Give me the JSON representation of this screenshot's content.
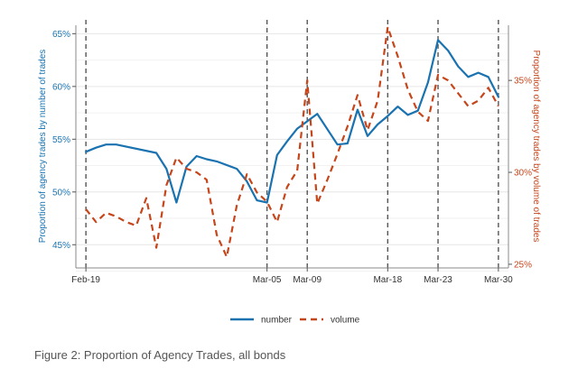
{
  "chart_data": {
    "type": "line",
    "x_categories": [
      "Feb-19",
      "Mar-05",
      "Mar-09",
      "Mar-18",
      "Mar-23",
      "Mar-30"
    ],
    "event_lines": [
      "Feb-19",
      "Mar-05",
      "Mar-09",
      "Mar-18",
      "Mar-23",
      "Mar-30"
    ],
    "ylabel_left": "Proportion of agency trades by number of trades",
    "ylabel_right": "Proportion of agency trades by volume of trades",
    "y_left_ticks": [
      "45%",
      "50%",
      "55%",
      "60%",
      "65%"
    ],
    "y_right_ticks": [
      "25%",
      "30%",
      "35%"
    ],
    "y_left_range": [
      42.8,
      65.8
    ],
    "y_right_range": [
      24.8,
      38.0
    ],
    "x_range": [
      -1,
      42
    ],
    "colors": {
      "number": "#1a73b0",
      "volume": "#c6461c"
    },
    "legend_position": "bottom",
    "series": [
      {
        "name": "number",
        "axis": "left",
        "x": [
          0,
          1,
          2,
          3,
          7,
          8,
          9,
          10,
          11,
          12,
          13,
          15,
          16,
          17,
          18,
          19,
          20,
          21,
          23,
          25,
          26,
          27,
          28,
          29,
          30,
          31,
          32,
          33,
          34,
          35,
          36,
          37,
          38,
          39,
          40,
          41
        ],
        "y": [
          53.8,
          54.2,
          54.5,
          54.5,
          53.7,
          52.2,
          49.0,
          52.4,
          53.4,
          53.1,
          52.9,
          52.2,
          51.0,
          49.2,
          49.0,
          53.5,
          54.8,
          56.0,
          57.4,
          54.5,
          54.6,
          57.8,
          55.3,
          56.4,
          57.2,
          58.1,
          57.3,
          57.7,
          60.4,
          64.4,
          63.4,
          61.9,
          60.9,
          61.3,
          60.9,
          59.0
        ]
      },
      {
        "name": "volume",
        "axis": "right",
        "x": [
          0,
          1,
          2,
          3,
          4,
          5,
          6,
          7,
          8,
          9,
          10,
          11,
          12,
          13,
          14,
          15,
          16,
          17,
          18,
          19,
          20,
          21,
          22,
          23,
          24,
          25,
          26,
          27,
          28,
          29,
          30,
          31,
          32,
          33,
          34,
          35,
          36,
          37,
          38,
          39,
          40,
          41
        ],
        "y": [
          28.0,
          27.3,
          27.8,
          27.6,
          27.3,
          27.1,
          28.6,
          25.9,
          29.3,
          30.8,
          30.2,
          30.0,
          29.6,
          26.6,
          25.4,
          28.2,
          29.9,
          28.9,
          28.4,
          27.3,
          29.2,
          30.1,
          35.0,
          28.3,
          29.6,
          31.0,
          32.5,
          34.2,
          32.3,
          33.9,
          37.9,
          36.3,
          34.5,
          33.3,
          32.8,
          35.3,
          35.0,
          34.3,
          33.6,
          33.9,
          34.6,
          33.6
        ]
      }
    ],
    "legend": [
      {
        "label": "number",
        "style": "solid"
      },
      {
        "label": "volume",
        "style": "dashed"
      }
    ]
  },
  "caption": "Figure 2: Proportion of Agency Trades, all bonds"
}
